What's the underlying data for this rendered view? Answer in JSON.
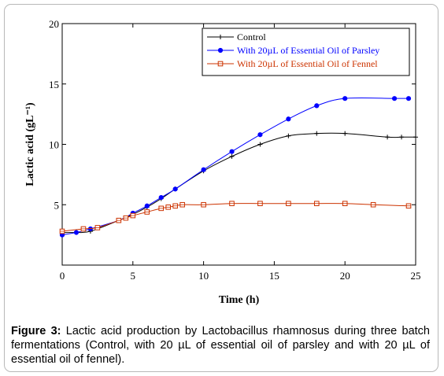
{
  "chart_data": {
    "type": "line",
    "xlabel": "Time (h)",
    "ylabel": "Lactic acid (gL⁻¹)",
    "xlim": [
      0,
      25
    ],
    "ylim": [
      0,
      20
    ],
    "x_ticks": [
      "0",
      "5",
      "10",
      "15",
      "20",
      "25"
    ],
    "y_ticks": [
      "5",
      "10",
      "15",
      "20"
    ],
    "grid": false,
    "legend_position": "top-right",
    "series": [
      {
        "name": "Control",
        "color": "#000000",
        "marker": "plus",
        "x": [
          0,
          1,
          2,
          4,
          5,
          6,
          7,
          8,
          10,
          12,
          14,
          16,
          18,
          20,
          23,
          24,
          25
        ],
        "y": [
          2.7,
          2.7,
          2.8,
          3.7,
          4.2,
          4.8,
          5.5,
          6.3,
          7.8,
          9.0,
          10.0,
          10.7,
          10.9,
          10.9,
          10.6,
          10.6,
          10.6
        ]
      },
      {
        "name": "With 20µL of Essential Oil of Parsley",
        "color": "#0000ff",
        "marker": "circle",
        "x": [
          0,
          1,
          2,
          4,
          5,
          6,
          7,
          8,
          10,
          12,
          14,
          16,
          18,
          20,
          23.5,
          24.5
        ],
        "y": [
          2.5,
          2.7,
          3.0,
          3.7,
          4.3,
          4.9,
          5.6,
          6.3,
          7.9,
          9.4,
          10.8,
          12.1,
          13.2,
          13.8,
          13.8,
          13.8
        ]
      },
      {
        "name": "With 20µL of Essential Oil of Fennel",
        "color": "#cc3300",
        "marker": "square-x",
        "x": [
          0,
          1.5,
          2.5,
          4,
          4.5,
          5,
          6,
          7,
          7.5,
          8,
          8.5,
          10,
          12,
          14,
          16,
          18,
          20,
          22,
          24.5
        ],
        "y": [
          2.8,
          3.0,
          3.1,
          3.7,
          3.9,
          4.1,
          4.4,
          4.7,
          4.8,
          4.9,
          5.0,
          5.0,
          5.1,
          5.1,
          5.1,
          5.1,
          5.1,
          5.0,
          4.9
        ]
      }
    ]
  },
  "caption": {
    "label": "Figure 3:",
    "text": " Lactic acid production by Lactobacillus rhamnosus during three batch fermentations (Control, with 20 µL of essential oil of parsley and with 20 µL of essential oil of fennel)."
  }
}
